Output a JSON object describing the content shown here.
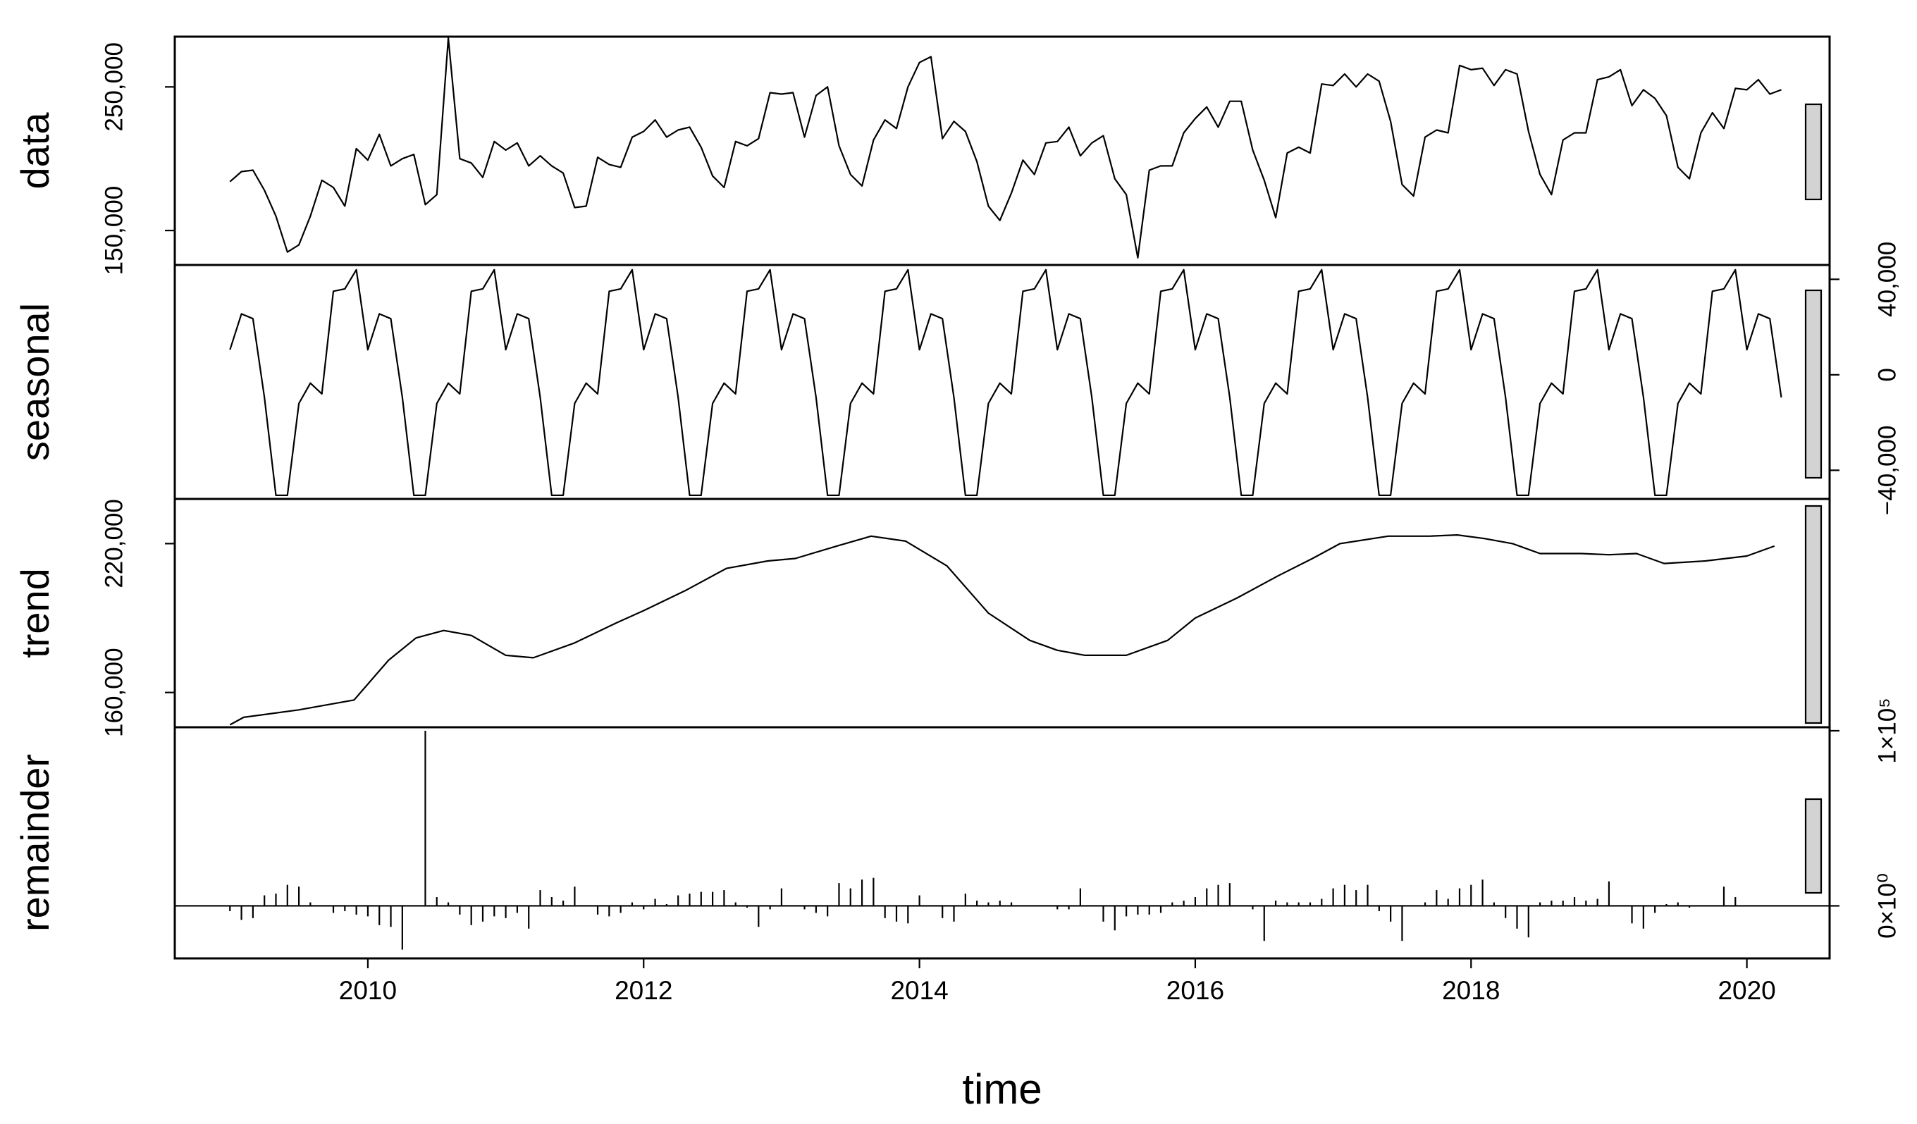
{
  "figure": {
    "xlabel": "time",
    "xticks": [
      "2010",
      "2012",
      "2014",
      "2016",
      "2018",
      "2020"
    ]
  },
  "colors": {
    "background": "#ffffff",
    "line": "#000000",
    "scale_bar_fill": "#d3d3d3"
  },
  "chart_data": {
    "type": "line",
    "title": "",
    "xlabel": "time",
    "x_range": [
      2008.6,
      2020.6
    ],
    "x_start": 2009.0,
    "frequency": 12,
    "panels": [
      {
        "name": "data",
        "ylabel": "data",
        "ytick_labels": [
          "150,000",
          "250,000"
        ],
        "ytick_values": [
          150000,
          250000
        ],
        "ytick_side": "left",
        "ylim": [
          126000,
          285000
        ],
        "values": [
          184000,
          191000,
          192000,
          178000,
          160000,
          135000,
          140000,
          160000,
          185000,
          180000,
          167000,
          207000,
          199000,
          217000,
          195000,
          200000,
          203000,
          168000,
          175000,
          284000,
          200000,
          197000,
          187000,
          212000,
          206000,
          211000,
          195000,
          202000,
          195000,
          190000,
          166000,
          167000,
          201000,
          196000,
          194000,
          215000,
          219000,
          227000,
          215000,
          220000,
          222000,
          208000,
          188000,
          180000,
          212000,
          209000,
          214000,
          246000,
          245000,
          246000,
          215000,
          244000,
          250000,
          209000,
          189000,
          181000,
          213000,
          227000,
          221000,
          250000,
          267000,
          271000,
          214000,
          226000,
          219000,
          198000,
          167000,
          157000,
          176000,
          199000,
          189000,
          211000,
          212000,
          222000,
          202000,
          211000,
          216000,
          186000,
          175000,
          131000,
          192000,
          195000,
          195000,
          218000,
          228000,
          236000,
          222000,
          240000,
          240000,
          206000,
          185000,
          159000,
          204000,
          208000,
          204000,
          252000,
          251000,
          259000,
          250000,
          259000,
          254000,
          226000,
          182000,
          174000,
          215000,
          220000,
          218000,
          265000,
          262000,
          263000,
          251000,
          262000,
          259000,
          219000,
          189000,
          175000,
          213000,
          218000,
          218000,
          255000,
          257000,
          262000,
          237000,
          248000,
          242000,
          230000,
          194000,
          186000,
          218000,
          232000,
          221000,
          249000,
          248000,
          255000,
          245000,
          248000
        ]
      },
      {
        "name": "seasonal",
        "ylabel": "seasonal",
        "ytick_labels": [
          "−40,000",
          "0",
          "40,000"
        ],
        "ytick_values": [
          -40000,
          0,
          40000
        ],
        "ytick_side": "right",
        "ylim": [
          -52000,
          46000
        ],
        "pattern": [
          10500,
          25500,
          23500,
          -9500,
          -50500,
          -50500,
          -12000,
          -3500,
          -8000,
          35000,
          36000,
          44000,
          10500,
          25500,
          23500
        ],
        "values": [
          10500,
          25500,
          23500,
          -9500,
          -50500,
          -50500,
          -12000,
          -3500,
          -8000,
          35000,
          36000,
          44000,
          10500,
          25500,
          23500,
          -9500,
          -50500,
          -50500,
          -12000,
          -3500,
          -8000,
          35000,
          36000,
          44000,
          10500,
          25500,
          23500,
          -9500,
          -50500,
          -50500,
          -12000,
          -3500,
          -8000,
          35000,
          36000,
          44000,
          10500,
          25500,
          23500,
          -9500,
          -50500,
          -50500,
          -12000,
          -3500,
          -8000,
          35000,
          36000,
          44000,
          10500,
          25500,
          23500,
          -9500,
          -50500,
          -50500,
          -12000,
          -3500,
          -8000,
          35000,
          36000,
          44000,
          10500,
          25500,
          23500,
          -9500,
          -50500,
          -50500,
          -12000,
          -3500,
          -8000,
          35000,
          36000,
          44000,
          10500,
          25500,
          23500,
          -9500,
          -50500,
          -50500,
          -12000,
          -3500,
          -8000,
          35000,
          36000,
          44000,
          10500,
          25500,
          23500,
          -9500,
          -50500,
          -50500,
          -12000,
          -3500,
          -8000,
          35000,
          36000,
          44000,
          10500,
          25500,
          23500,
          -9500,
          -50500,
          -50500,
          -12000,
          -3500,
          -8000,
          35000,
          36000,
          44000,
          10500,
          25500,
          23500,
          -9500,
          -50500,
          -50500,
          -12000,
          -3500,
          -8000,
          35000,
          36000,
          44000,
          10500,
          25500,
          23500,
          -9500,
          -50500,
          -50500,
          -12000,
          -3500,
          -8000,
          35000,
          36000,
          44000,
          10500,
          25500,
          23500,
          -9500
        ]
      },
      {
        "name": "trend",
        "ylabel": "trend",
        "ytick_labels": [
          "160,000",
          "220,000"
        ],
        "ytick_values": [
          160000,
          220000
        ],
        "ytick_side": "left",
        "ylim": [
          146000,
          238000
        ],
        "knots_x": [
          2009.0,
          2009.1,
          2009.5,
          2009.9,
          2010.15,
          2010.35,
          2010.55,
          2010.75,
          2011.0,
          2011.2,
          2011.5,
          2011.8,
          2012.0,
          2012.3,
          2012.6,
          2012.9,
          2013.1,
          2013.4,
          2013.65,
          2013.9,
          2014.2,
          2014.5,
          2014.8,
          2015.0,
          2015.2,
          2015.5,
          2015.8,
          2016.0,
          2016.3,
          2016.6,
          2016.85,
          2017.05,
          2017.4,
          2017.7,
          2017.9,
          2018.1,
          2018.3,
          2018.5,
          2018.8,
          2019.0,
          2019.2,
          2019.4,
          2019.7,
          2020.0,
          2020.2
        ],
        "knots_y": [
          147000,
          150000,
          153000,
          157000,
          173000,
          182000,
          185000,
          183000,
          175000,
          174000,
          180000,
          188000,
          193000,
          201000,
          210000,
          213000,
          214000,
          219000,
          223000,
          221000,
          211000,
          192000,
          181000,
          177000,
          175000,
          175000,
          181000,
          190000,
          198000,
          207000,
          214000,
          220000,
          223000,
          223000,
          223500,
          222000,
          220000,
          216000,
          216000,
          215500,
          216000,
          212000,
          213000,
          215000,
          219000
        ]
      },
      {
        "name": "remainder",
        "ylabel": "remainder",
        "ytick_labels": [
          "0×10⁰",
          "1×10⁵"
        ],
        "ytick_values": [
          0,
          100000
        ],
        "ytick_side": "right",
        "ylim": [
          -30000,
          102000
        ],
        "values": [
          -3000,
          -8000,
          -7000,
          6000,
          7000,
          12000,
          11000,
          2000,
          0,
          -4000,
          -3000,
          -5000,
          -6000,
          -11000,
          -12000,
          -25000,
          0,
          100000,
          5000,
          2000,
          -5000,
          -11000,
          -9000,
          -6000,
          -7000,
          -4000,
          -13000,
          9000,
          5000,
          3000,
          11000,
          0,
          -5000,
          -6000,
          -4000,
          2000,
          -2000,
          4000,
          1000,
          6000,
          7000,
          8000,
          8000,
          9000,
          2000,
          -1000,
          -12000,
          -2000,
          10000,
          0,
          -2000,
          -4000,
          -6000,
          13000,
          10000,
          15000,
          16000,
          -7000,
          -9000,
          -10000,
          6000,
          0,
          -7000,
          -9000,
          7000,
          3000,
          2000,
          3000,
          2000,
          0,
          0,
          0,
          -2000,
          -2000,
          10000,
          0,
          -9000,
          -14000,
          -6000,
          -5000,
          -5000,
          -4000,
          2000,
          3000,
          5000,
          10000,
          12000,
          13000,
          0,
          -2000,
          -20000,
          3000,
          2000,
          2000,
          2000,
          4000,
          10000,
          12000,
          9000,
          12000,
          -3000,
          -9000,
          -20000,
          0,
          2000,
          9000,
          4000,
          10000,
          12000,
          15000,
          2000,
          -7000,
          -13000,
          -18000,
          2000,
          3000,
          3000,
          5000,
          3000,
          4000,
          14000,
          0,
          -10000,
          -13000,
          -4000,
          1000,
          2000,
          -1000,
          0,
          0,
          11000,
          5000,
          0,
          0,
          0,
          0
        ]
      }
    ]
  }
}
